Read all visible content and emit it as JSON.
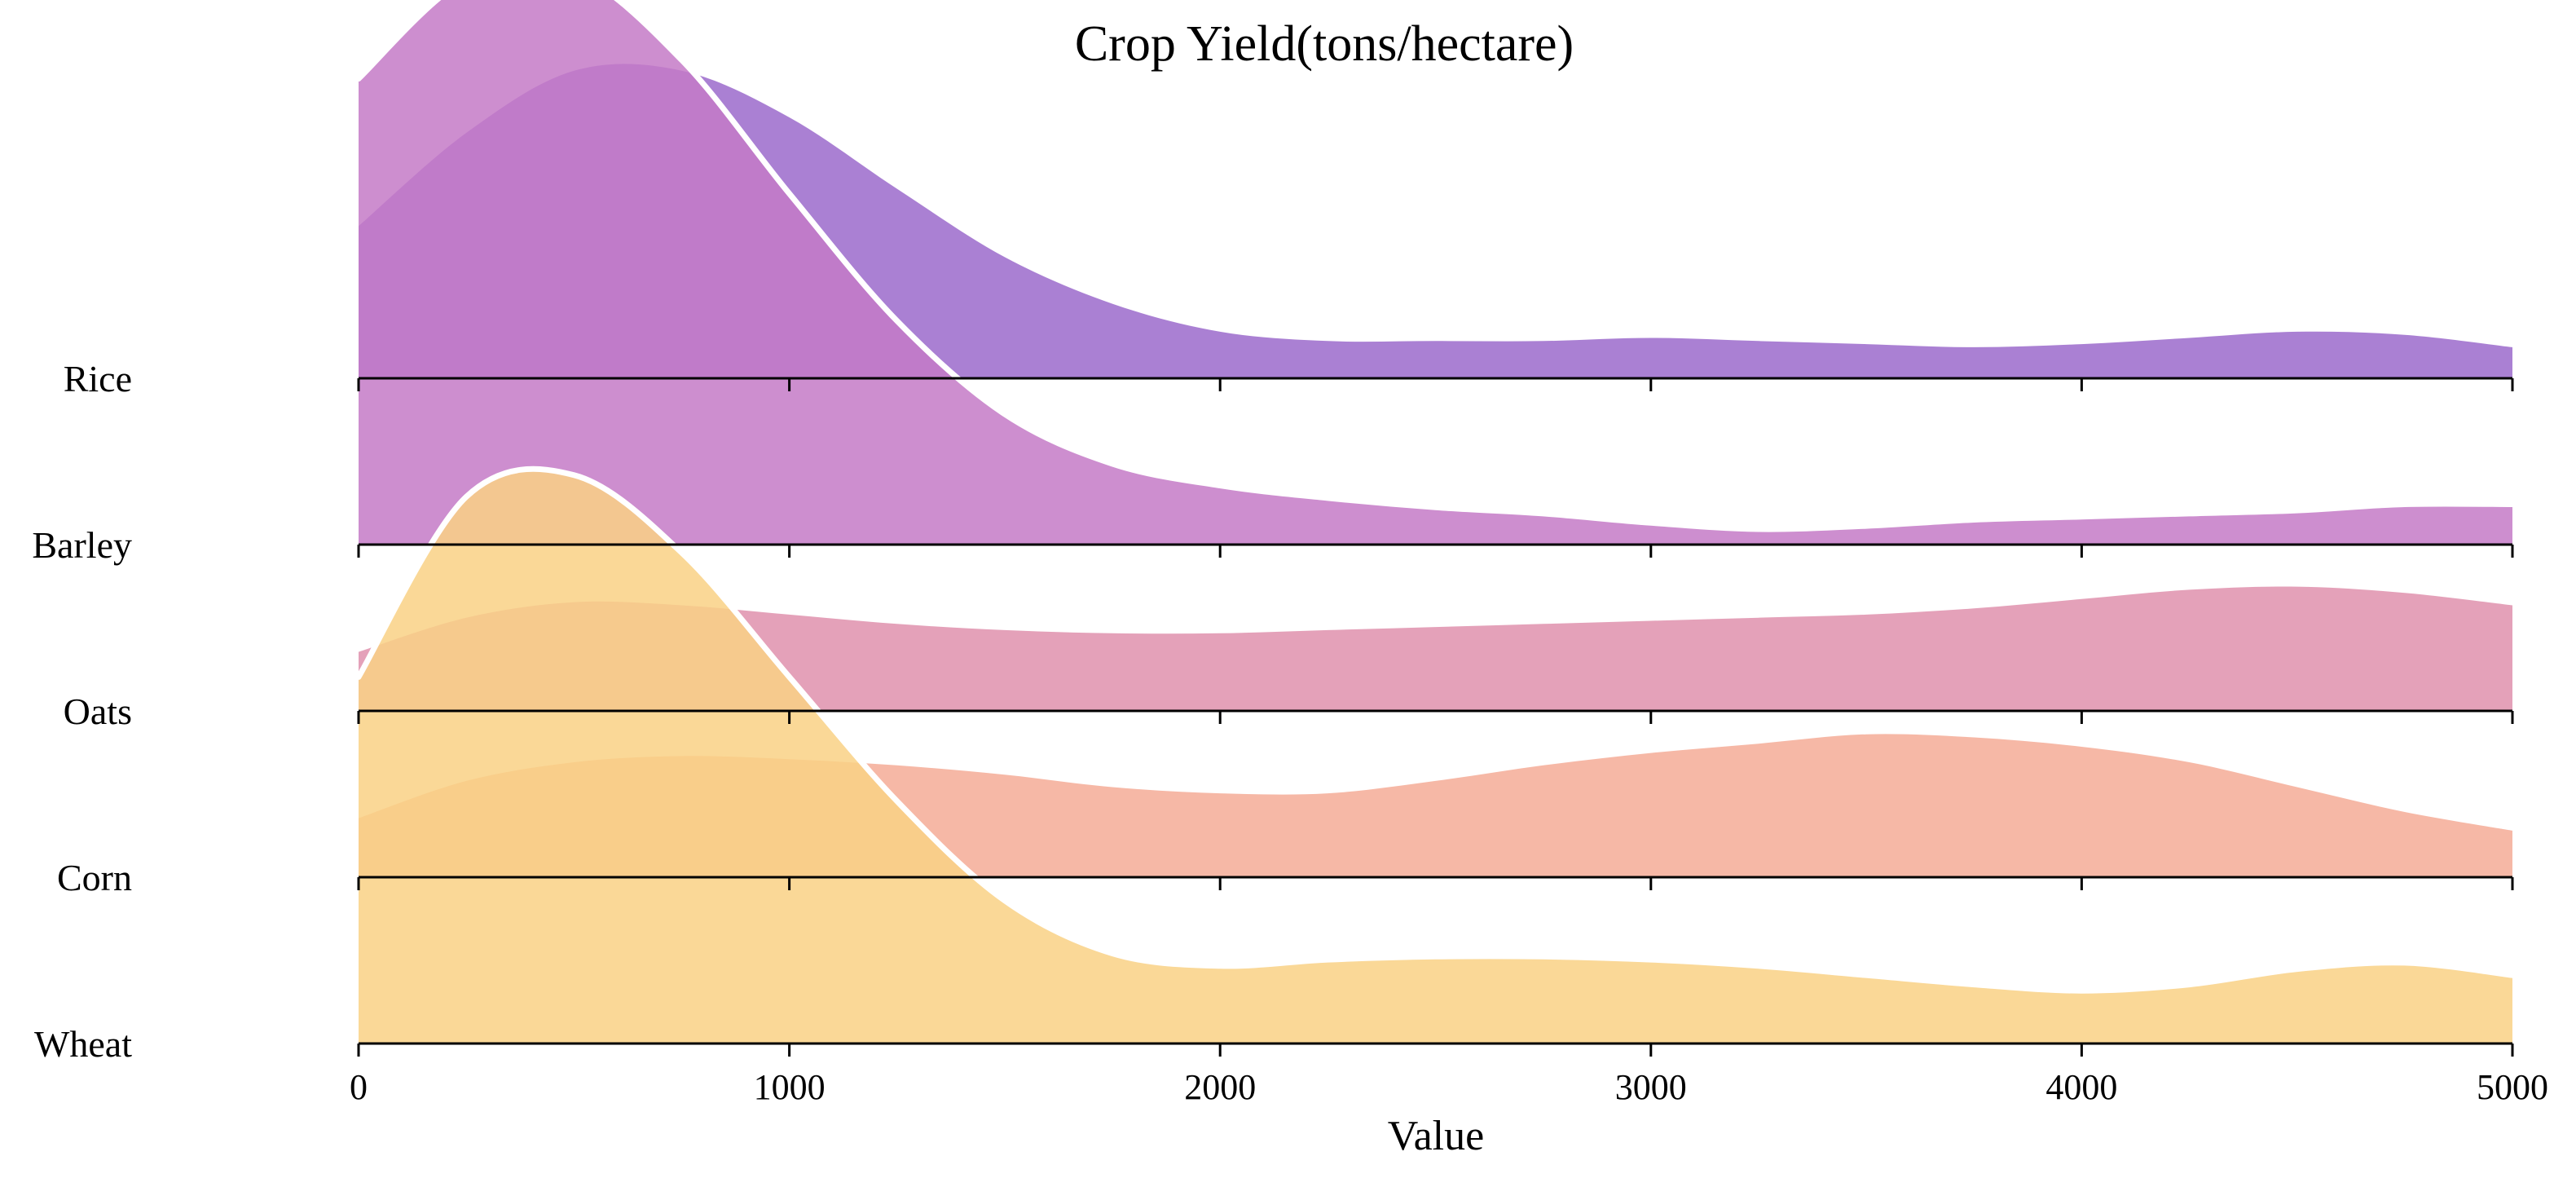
{
  "chart_data": {
    "type": "area",
    "subtype": "ridgeline",
    "title": "Crop Yield(tons/hectare)",
    "xlabel": "Value",
    "ylabel": "",
    "xlim": [
      0,
      5000
    ],
    "x_ticks": [
      0,
      1000,
      2000,
      3000,
      4000,
      5000
    ],
    "grid": false,
    "legend": "none",
    "categories": [
      "Rice",
      "Barley",
      "Oats",
      "Corn",
      "Wheat"
    ],
    "x": [
      0,
      250,
      500,
      750,
      1000,
      1250,
      1500,
      1750,
      2000,
      2250,
      2500,
      2750,
      3000,
      3250,
      3500,
      3750,
      4000,
      4250,
      4500,
      4750,
      5000
    ],
    "series": [
      {
        "name": "Rice",
        "color": "#9b6acb",
        "values": [
          0.49,
          0.79,
          0.99,
          0.99,
          0.84,
          0.61,
          0.39,
          0.24,
          0.15,
          0.12,
          0.12,
          0.12,
          0.13,
          0.12,
          0.11,
          0.1,
          0.11,
          0.13,
          0.15,
          0.14,
          0.1
        ]
      },
      {
        "name": "Barley",
        "color": "#c47ac7",
        "values": [
          1.5,
          1.82,
          1.84,
          1.56,
          1.13,
          0.72,
          0.42,
          0.26,
          0.19,
          0.15,
          0.12,
          0.1,
          0.07,
          0.05,
          0.06,
          0.08,
          0.09,
          0.1,
          0.11,
          0.13,
          0.13
        ]
      },
      {
        "name": "Oats",
        "color": "#df91ad",
        "values": [
          0.19,
          0.3,
          0.35,
          0.34,
          0.31,
          0.28,
          0.26,
          0.25,
          0.25,
          0.26,
          0.27,
          0.28,
          0.29,
          0.3,
          0.31,
          0.33,
          0.36,
          0.39,
          0.4,
          0.38,
          0.34
        ]
      },
      {
        "name": "Corn",
        "color": "#f4ac96",
        "values": [
          0.19,
          0.31,
          0.37,
          0.39,
          0.38,
          0.36,
          0.33,
          0.29,
          0.27,
          0.27,
          0.31,
          0.36,
          0.4,
          0.43,
          0.46,
          0.45,
          0.42,
          0.37,
          0.29,
          0.21,
          0.15
        ]
      },
      {
        "name": "Wheat",
        "color": "#f9d185",
        "values": [
          1.18,
          1.76,
          1.83,
          1.58,
          1.18,
          0.78,
          0.46,
          0.29,
          0.25,
          0.27,
          0.28,
          0.28,
          0.27,
          0.25,
          0.22,
          0.19,
          0.17,
          0.19,
          0.24,
          0.26,
          0.22
        ]
      }
    ],
    "highlighted_curves": [
      "Barley",
      "Wheat"
    ]
  }
}
